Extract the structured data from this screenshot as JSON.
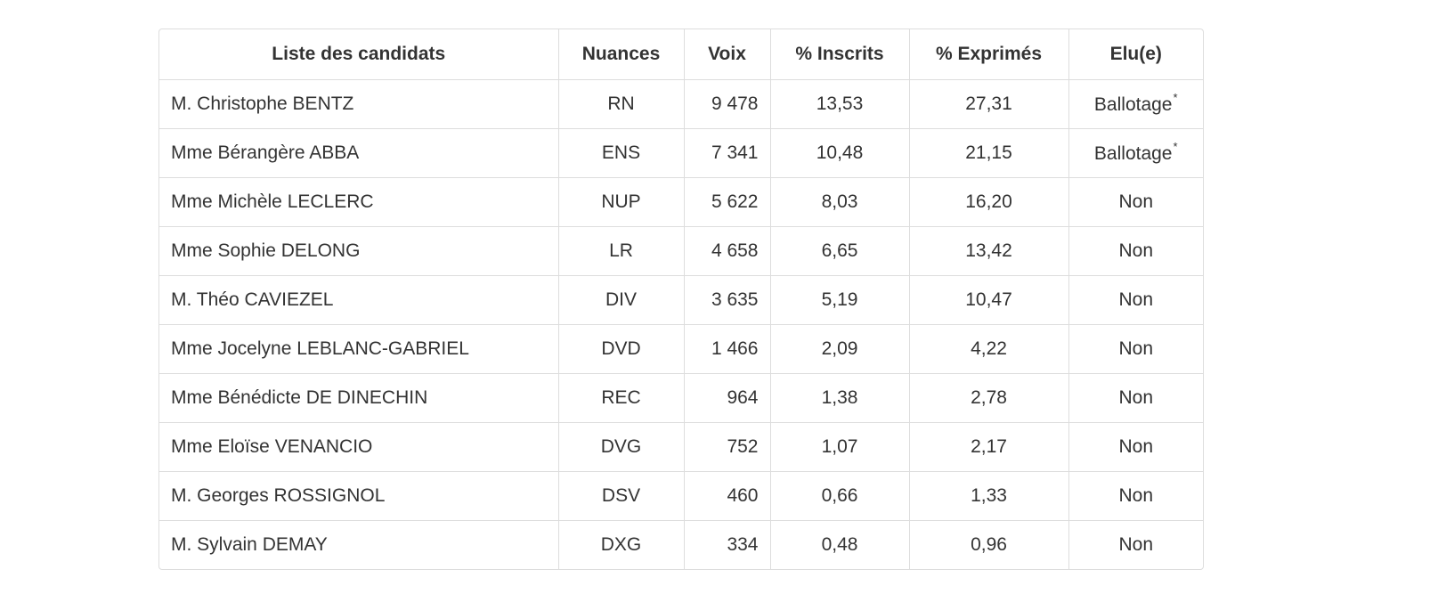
{
  "table": {
    "headers": {
      "candidates": "Liste des candidats",
      "nuances": "Nuances",
      "voix": "Voix",
      "inscrits": "% Inscrits",
      "exprimes": "% Exprimés",
      "elu": "Elu(e)"
    },
    "rows": [
      {
        "name": "M. Christophe BENTZ",
        "nuance": "RN",
        "voix": "9 478",
        "inscrits": "13,53",
        "exprimes": "27,31",
        "elu": "Ballotage",
        "mark": "*"
      },
      {
        "name": "Mme Bérangère ABBA",
        "nuance": "ENS",
        "voix": "7 341",
        "inscrits": "10,48",
        "exprimes": "21,15",
        "elu": "Ballotage",
        "mark": "*"
      },
      {
        "name": "Mme Michèle LECLERC",
        "nuance": "NUP",
        "voix": "5 622",
        "inscrits": "8,03",
        "exprimes": "16,20",
        "elu": "Non",
        "mark": ""
      },
      {
        "name": "Mme Sophie DELONG",
        "nuance": "LR",
        "voix": "4 658",
        "inscrits": "6,65",
        "exprimes": "13,42",
        "elu": "Non",
        "mark": ""
      },
      {
        "name": "M. Théo CAVIEZEL",
        "nuance": "DIV",
        "voix": "3 635",
        "inscrits": "5,19",
        "exprimes": "10,47",
        "elu": "Non",
        "mark": ""
      },
      {
        "name": "Mme Jocelyne LEBLANC-GABRIEL",
        "nuance": "DVD",
        "voix": "1 466",
        "inscrits": "2,09",
        "exprimes": "4,22",
        "elu": "Non",
        "mark": ""
      },
      {
        "name": "Mme Bénédicte DE DINECHIN",
        "nuance": "REC",
        "voix": "964",
        "inscrits": "1,38",
        "exprimes": "2,78",
        "elu": "Non",
        "mark": ""
      },
      {
        "name": "Mme Eloïse VENANCIO",
        "nuance": "DVG",
        "voix": "752",
        "inscrits": "1,07",
        "exprimes": "2,17",
        "elu": "Non",
        "mark": ""
      },
      {
        "name": "M. Georges ROSSIGNOL",
        "nuance": "DSV",
        "voix": "460",
        "inscrits": "0,66",
        "exprimes": "1,33",
        "elu": "Non",
        "mark": ""
      },
      {
        "name": "M. Sylvain DEMAY",
        "nuance": "DXG",
        "voix": "334",
        "inscrits": "0,48",
        "exprimes": "0,96",
        "elu": "Non",
        "mark": ""
      }
    ]
  }
}
